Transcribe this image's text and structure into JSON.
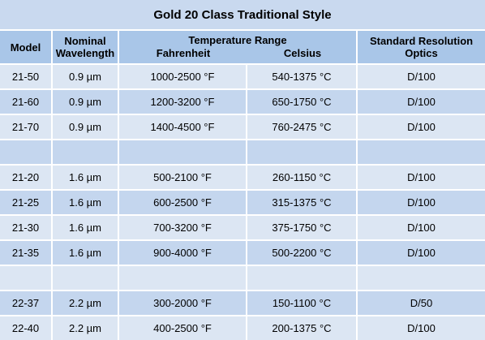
{
  "title": "Gold 20 Class Traditional Style",
  "headers": {
    "model": "Model",
    "wavelength_1": "Nominal",
    "wavelength_2": "Wavelength",
    "temp_range": "Temperature Range",
    "fahrenheit": "Fahrenheit",
    "celsius": "Celsius",
    "optics_1": "Standard Resolution",
    "optics_2": "Optics"
  },
  "rows": [
    {
      "model": "21-50",
      "wavelength": "0.9 µm",
      "fahrenheit": "1000-2500 °F",
      "celsius": "540-1375 °C",
      "optics": "D/100"
    },
    {
      "model": "21-60",
      "wavelength": "0.9 µm",
      "fahrenheit": "1200-3200 °F",
      "celsius": "650-1750 °C",
      "optics": "D/100"
    },
    {
      "model": "21-70",
      "wavelength": "0.9 µm",
      "fahrenheit": "1400-4500 °F",
      "celsius": "760-2475 °C",
      "optics": "D/100"
    },
    {
      "model": "",
      "wavelength": "",
      "fahrenheit": "",
      "celsius": "",
      "optics": ""
    },
    {
      "model": "21-20",
      "wavelength": "1.6 µm",
      "fahrenheit": "500-2100 °F",
      "celsius": "260-1150 °C",
      "optics": "D/100"
    },
    {
      "model": "21-25",
      "wavelength": "1.6 µm",
      "fahrenheit": "600-2500 °F",
      "celsius": "315-1375 °C",
      "optics": "D/100"
    },
    {
      "model": "21-30",
      "wavelength": "1.6 µm",
      "fahrenheit": "700-3200 °F",
      "celsius": "375-1750 °C",
      "optics": "D/100"
    },
    {
      "model": "21-35",
      "wavelength": "1.6 µm",
      "fahrenheit": "900-4000 °F",
      "celsius": "500-2200 °C",
      "optics": "D/100"
    },
    {
      "model": "",
      "wavelength": "",
      "fahrenheit": "",
      "celsius": "",
      "optics": ""
    },
    {
      "model": "22-37",
      "wavelength": "2.2 µm",
      "fahrenheit": "300-2000 °F",
      "celsius": "150-1100 °C",
      "optics": "D/50"
    },
    {
      "model": "22-40",
      "wavelength": "2.2 µm",
      "fahrenheit": "400-2500 °F",
      "celsius": "200-1375 °C",
      "optics": "D/100"
    }
  ]
}
